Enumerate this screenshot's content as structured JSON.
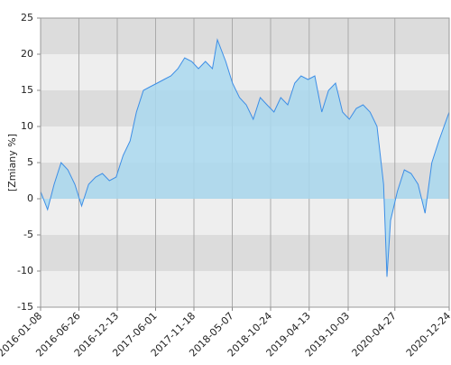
{
  "chart_data": {
    "type": "area",
    "ylabel": "[Zmiany %]",
    "x": [
      "2016-01-08",
      "2016-02-08",
      "2016-03-08",
      "2016-04-08",
      "2016-05-08",
      "2016-06-08",
      "2016-07-08",
      "2016-08-08",
      "2016-09-08",
      "2016-10-08",
      "2016-11-08",
      "2016-12-08",
      "2017-01-08",
      "2017-02-08",
      "2017-03-08",
      "2017-04-08",
      "2017-05-08",
      "2017-06-08",
      "2017-07-08",
      "2017-08-08",
      "2017-09-08",
      "2017-10-08",
      "2017-11-08",
      "2017-12-08",
      "2018-01-08",
      "2018-02-08",
      "2018-03-02",
      "2018-04-08",
      "2018-05-08",
      "2018-06-08",
      "2018-07-08",
      "2018-08-08",
      "2018-09-08",
      "2018-10-08",
      "2018-11-08",
      "2018-12-08",
      "2019-01-08",
      "2019-02-08",
      "2019-03-08",
      "2019-04-08",
      "2019-05-08",
      "2019-06-08",
      "2019-07-08",
      "2019-08-08",
      "2019-09-08",
      "2019-10-08",
      "2019-11-08",
      "2019-12-08",
      "2020-01-08",
      "2020-02-08",
      "2020-03-08",
      "2020-03-23",
      "2020-04-08",
      "2020-05-08",
      "2020-06-08",
      "2020-07-08",
      "2020-08-08",
      "2020-09-08",
      "2020-10-08",
      "2020-11-08",
      "2020-12-24"
    ],
    "series": [
      {
        "name": "Zmiany",
        "color": "#3d8ee6",
        "fill": "#a9d8ef",
        "values": [
          1,
          -1.5,
          2,
          5,
          4,
          2,
          -1,
          2,
          3,
          3.5,
          2.5,
          3,
          6,
          8,
          12,
          15,
          15.5,
          16,
          16.5,
          17,
          18,
          19.5,
          19,
          18,
          19,
          18,
          22,
          19,
          16,
          14,
          13,
          11,
          14,
          13,
          12,
          14,
          13,
          16,
          17,
          16.5,
          17,
          12,
          15,
          16,
          12,
          11,
          12.5,
          13,
          12,
          10,
          2,
          -10.8,
          -3,
          1,
          4,
          3.5,
          2,
          -2,
          5,
          8,
          12
        ]
      }
    ],
    "xlim": [
      "2016-01-08",
      "2020-12-24"
    ],
    "xticks": [
      "2016-01-08",
      "2016-06-26",
      "2016-12-13",
      "2017-06-01",
      "2017-11-18",
      "2018-05-07",
      "2018-10-24",
      "2019-04-13",
      "2019-10-03",
      "2020-04-27",
      "2020-12-24"
    ],
    "ylim": [
      -15,
      25
    ],
    "yticks": [
      -15,
      -10,
      -5,
      0,
      5,
      10,
      15,
      20,
      25
    ],
    "grid": true
  }
}
